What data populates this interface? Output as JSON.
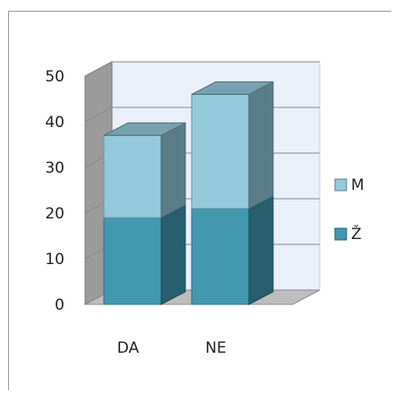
{
  "chart_data": {
    "type": "bar",
    "stacked": true,
    "three_d": true,
    "categories": [
      "DA",
      "NE"
    ],
    "series": [
      {
        "name": "Ž",
        "values": [
          19,
          21
        ],
        "color": "#4198af"
      },
      {
        "name": "M",
        "values": [
          18,
          25
        ],
        "color": "#93c9da"
      }
    ],
    "ylim": [
      0,
      50
    ],
    "yticks": [
      "0",
      "10",
      "20",
      "30",
      "40",
      "50"
    ],
    "grid": true,
    "legend_position": "right",
    "colors": {
      "back_wall": "#eaf0fa",
      "side_wall": "#9b9b9b",
      "floor": "#bdbdbd",
      "grid": "#8a8a8a"
    }
  }
}
